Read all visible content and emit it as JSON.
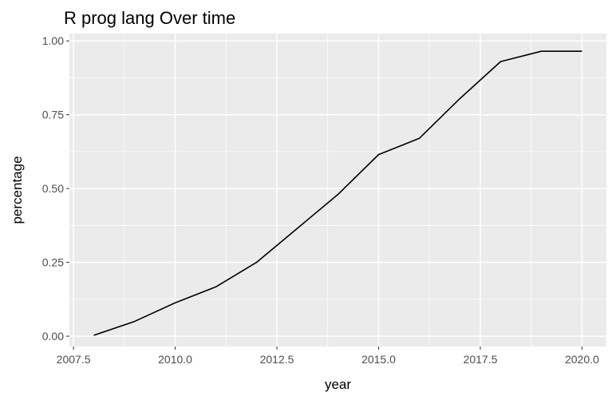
{
  "chart_data": {
    "type": "line",
    "title": "R prog lang Over time",
    "xlabel": "year",
    "ylabel": "percentage",
    "xlim": [
      2007.4,
      2020.6
    ],
    "ylim": [
      -0.035,
      1.025
    ],
    "xticks": [
      2007.5,
      2010.0,
      2012.5,
      2015.0,
      2017.5,
      2020.0
    ],
    "xtick_labels": [
      "2007.5",
      "2010.0",
      "2012.5",
      "2015.0",
      "2017.5",
      "2020.0"
    ],
    "yticks": [
      0.0,
      0.25,
      0.5,
      0.75,
      1.0
    ],
    "ytick_labels": [
      "0.00",
      "0.25",
      "0.50",
      "0.75",
      "1.00"
    ],
    "grid": true,
    "legend": "none",
    "colors": {
      "panel": "#ebebeb",
      "grid": "#ffffff",
      "line": "#000000"
    },
    "series": [
      {
        "x": [
          2008,
          2009,
          2010,
          2011,
          2012,
          2013,
          2014,
          2015,
          2016,
          2017,
          2018,
          2019,
          2020
        ],
        "values": [
          0.003,
          0.05,
          0.113,
          0.167,
          0.25,
          0.365,
          0.48,
          0.615,
          0.67,
          0.805,
          0.93,
          0.965,
          0.965
        ]
      }
    ]
  }
}
